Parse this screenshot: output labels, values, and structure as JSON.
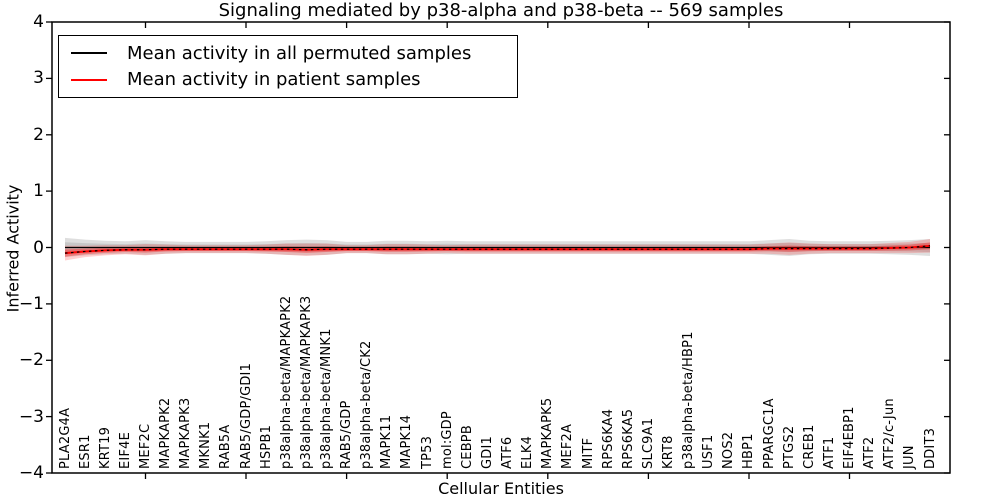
{
  "title": "Signaling mediated by p38-alpha and p38-beta -- 569 samples",
  "axes": {
    "xlabel": "Cellular Entities",
    "ylabel": "Inferred Activity",
    "yticks": [
      {
        "label": "4",
        "value": 4
      },
      {
        "label": "3",
        "value": 3
      },
      {
        "label": "2",
        "value": 2
      },
      {
        "label": "1",
        "value": 1
      },
      {
        "label": "0",
        "value": 0
      },
      {
        "label": "−1",
        "value": -1
      },
      {
        "label": "−2",
        "value": -2
      },
      {
        "label": "−3",
        "value": -3
      },
      {
        "label": "−4",
        "value": -4
      }
    ]
  },
  "legend": {
    "items": [
      {
        "label": "Mean activity in all permuted samples",
        "color": "#000000"
      },
      {
        "label": "Mean activity in patient samples",
        "color": "#ff0000"
      }
    ]
  },
  "chart_data": {
    "type": "line",
    "title": "Signaling mediated by p38-alpha and p38-beta -- 569 samples",
    "xlabel": "Cellular Entities",
    "ylabel": "Inferred Activity",
    "ylim": [
      -4,
      4
    ],
    "grid": false,
    "legend_position": "upper left",
    "categories": [
      "PLA2G4A",
      "ESR1",
      "KRT19",
      "EIF4E",
      "MEF2C",
      "MAPKAPK2",
      "MAPKAPK3",
      "MKNK1",
      "RAB5A",
      "RAB5/GDP/GDI1",
      "HSPB1",
      "p38alpha-beta/MAPKAPK2",
      "p38alpha-beta/MAPKAPK3",
      "p38alpha-beta/MNK1",
      "RAB5/GDP",
      "p38alpha-beta/CK2",
      "MAPK11",
      "MAPK14",
      "TP53",
      "mol:GDP",
      "CEBPB",
      "GDI1",
      "ATF6",
      "ELK4",
      "MAPKAPK5",
      "MEF2A",
      "MITF",
      "RPS6KA4",
      "RPS6KA5",
      "SLC9A1",
      "KRT8",
      "p38alpha-beta/HBP1",
      "USF1",
      "NOS2",
      "HBP1",
      "PPARGC1A",
      "PTGS2",
      "CREB1",
      "ATF1",
      "EIF4EBP1",
      "ATF2",
      "ATF2/c-Jun",
      "JUN",
      "DDIT3"
    ],
    "series": [
      {
        "name": "Mean activity in all permuted samples",
        "color": "#000000",
        "band_color": "#000000",
        "values": [
          0,
          0,
          0,
          0,
          0,
          0,
          0,
          0,
          0,
          0,
          0,
          0,
          0,
          0,
          0,
          0,
          0,
          0,
          0,
          0,
          0,
          0,
          0,
          0,
          0,
          0,
          0,
          0,
          0,
          0,
          0,
          0,
          0,
          0,
          0,
          0,
          0,
          0,
          0,
          0,
          0,
          0,
          0,
          0
        ],
        "band_std": [
          0.17,
          0.14,
          0.12,
          0.11,
          0.13,
          0.11,
          0.1,
          0.1,
          0.1,
          0.1,
          0.11,
          0.13,
          0.14,
          0.13,
          0.1,
          0.1,
          0.12,
          0.12,
          0.11,
          0.12,
          0.11,
          0.11,
          0.11,
          0.11,
          0.11,
          0.11,
          0.11,
          0.11,
          0.11,
          0.11,
          0.11,
          0.11,
          0.11,
          0.11,
          0.11,
          0.13,
          0.15,
          0.12,
          0.11,
          0.11,
          0.11,
          0.12,
          0.13,
          0.15
        ]
      },
      {
        "name": "Mean activity in patient samples",
        "color": "#ff0000",
        "band_color": "#ff0000",
        "values": [
          -0.1,
          -0.07,
          -0.05,
          -0.04,
          -0.04,
          -0.03,
          -0.03,
          -0.03,
          -0.03,
          -0.03,
          -0.03,
          -0.03,
          -0.04,
          -0.03,
          -0.03,
          -0.03,
          -0.03,
          -0.03,
          -0.03,
          -0.03,
          -0.03,
          -0.03,
          -0.03,
          -0.03,
          -0.03,
          -0.03,
          -0.03,
          -0.03,
          -0.03,
          -0.03,
          -0.03,
          -0.03,
          -0.03,
          -0.03,
          -0.03,
          -0.02,
          -0.02,
          -0.02,
          -0.02,
          -0.02,
          -0.02,
          -0.01,
          0.0,
          0.03
        ],
        "band_std": [
          0.13,
          0.1,
          0.09,
          0.08,
          0.1,
          0.08,
          0.07,
          0.07,
          0.07,
          0.07,
          0.08,
          0.1,
          0.11,
          0.1,
          0.07,
          0.07,
          0.09,
          0.09,
          0.08,
          0.07,
          0.08,
          0.08,
          0.08,
          0.08,
          0.08,
          0.08,
          0.08,
          0.08,
          0.08,
          0.08,
          0.08,
          0.08,
          0.08,
          0.08,
          0.08,
          0.09,
          0.11,
          0.09,
          0.08,
          0.08,
          0.08,
          0.09,
          0.1,
          0.12
        ]
      }
    ]
  },
  "colors": {
    "spine": "#000000",
    "background": "#ffffff",
    "permuted_line": "#000000",
    "patient_line": "#ff0000"
  }
}
